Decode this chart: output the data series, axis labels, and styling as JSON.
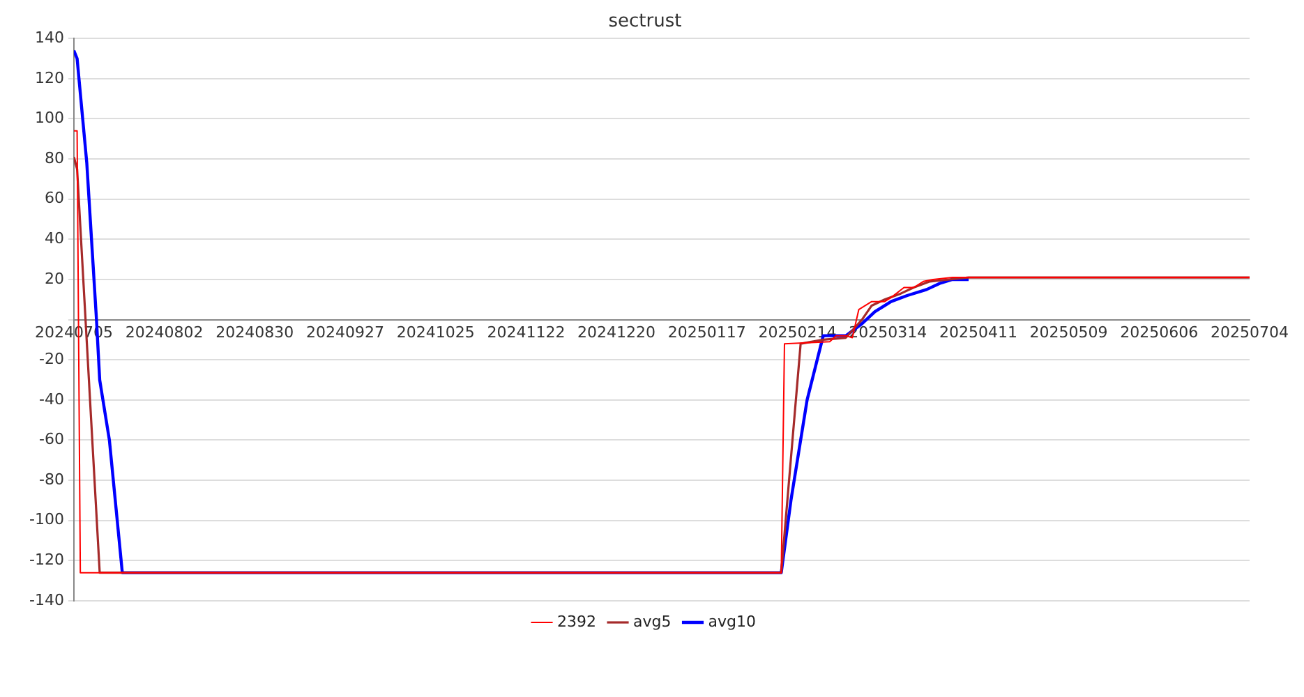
{
  "chart_data": {
    "type": "line",
    "title": "sectrust",
    "xlim": [
      "2024-07-05",
      "2025-07-04"
    ],
    "xticks": [
      {
        "value": "2024-07-05",
        "label": "20240705"
      },
      {
        "value": "2024-08-02",
        "label": "20240802"
      },
      {
        "value": "2024-08-30",
        "label": "20240830"
      },
      {
        "value": "2024-09-27",
        "label": "20240927"
      },
      {
        "value": "2024-10-25",
        "label": "20241025"
      },
      {
        "value": "2024-11-22",
        "label": "20241122"
      },
      {
        "value": "2024-12-20",
        "label": "20241220"
      },
      {
        "value": "2025-01-17",
        "label": "20250117"
      },
      {
        "value": "2025-02-14",
        "label": "20250214"
      },
      {
        "value": "2025-03-14",
        "label": "20250314"
      },
      {
        "value": "2025-04-11",
        "label": "20250411"
      },
      {
        "value": "2025-05-09",
        "label": "20250509"
      },
      {
        "value": "2025-06-06",
        "label": "20250606"
      },
      {
        "value": "2025-07-04",
        "label": "20250704"
      }
    ],
    "ylim": [
      -140,
      140
    ],
    "yticks": [
      -140,
      -120,
      -100,
      -80,
      -60,
      -40,
      -20,
      {
        "value": 0,
        "label": null
      },
      20,
      40,
      60,
      80,
      100,
      120,
      140
    ],
    "grid": "y",
    "legend": "bottom",
    "marker": "none",
    "line_style": "solid",
    "series": [
      {
        "name": "2392",
        "color": "#ff0000",
        "x": [
          "2024-07-05",
          "2024-07-06",
          "2024-07-07",
          "2025-02-09",
          "2025-02-10",
          "2025-02-24",
          "2025-02-26",
          "2025-03-01",
          "2025-03-03",
          "2025-03-05",
          "2025-03-07",
          "2025-03-09",
          "2025-03-13",
          "2025-03-15",
          "2025-03-19",
          "2025-03-22",
          "2025-03-25",
          "2025-03-28",
          "2025-04-03",
          "2025-07-04"
        ],
        "values": [
          94,
          94,
          -126,
          -126,
          -12,
          -11,
          -8,
          -8,
          -9,
          5,
          7,
          9,
          9,
          11,
          16,
          16,
          19,
          20,
          21,
          21
        ]
      },
      {
        "name": "avg5",
        "color": "#a52a2a",
        "x": [
          "2024-07-05",
          "2024-07-06",
          "2024-07-13",
          "2025-02-09",
          "2025-02-15",
          "2025-02-22",
          "2025-03-01",
          "2025-03-06",
          "2025-03-09",
          "2025-03-13",
          "2025-03-18",
          "2025-03-22",
          "2025-03-27",
          "2025-04-02",
          "2025-04-08",
          "2025-07-04"
        ],
        "values": [
          81,
          75,
          -126,
          -126,
          -12,
          -10,
          -9,
          0,
          7,
          10,
          13,
          16,
          19,
          20,
          21,
          21
        ]
      },
      {
        "name": "avg10",
        "color": "#0000ff",
        "x": [
          "2024-07-05",
          "2024-07-06",
          "2024-07-09",
          "2024-07-12",
          "2024-07-13",
          "2024-07-16",
          "2024-07-20",
          "2025-02-09",
          "2025-02-12",
          "2025-02-17",
          "2025-02-22",
          "2025-03-01",
          "2025-03-06",
          "2025-03-10",
          "2025-03-15",
          "2025-03-20",
          "2025-03-26",
          "2025-03-30",
          "2025-04-03",
          "2025-04-08"
        ],
        "values": [
          134,
          130,
          78,
          0,
          -30,
          -60,
          -126,
          -126,
          -90,
          -40,
          -8,
          -8,
          -2,
          4,
          9,
          12,
          15,
          18,
          20,
          20
        ]
      }
    ]
  }
}
